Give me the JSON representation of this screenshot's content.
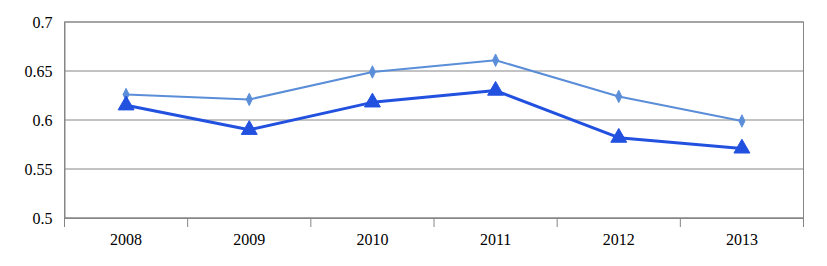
{
  "chart_data": {
    "type": "line",
    "categories": [
      "2008",
      "2009",
      "2010",
      "2011",
      "2012",
      "2013"
    ],
    "series": [
      {
        "color": "#5b8ed8",
        "marker": "diamond",
        "values": [
          0.626,
          0.621,
          0.649,
          0.661,
          0.624,
          0.599
        ]
      },
      {
        "color": "#2251e0",
        "marker": "triangle",
        "values": [
          0.615,
          0.59,
          0.618,
          0.63,
          0.582,
          0.571
        ]
      }
    ],
    "ylim": [
      0.5,
      0.7
    ],
    "yticks": [
      0.5,
      0.55,
      0.6,
      0.65,
      0.7
    ],
    "grid": true
  }
}
